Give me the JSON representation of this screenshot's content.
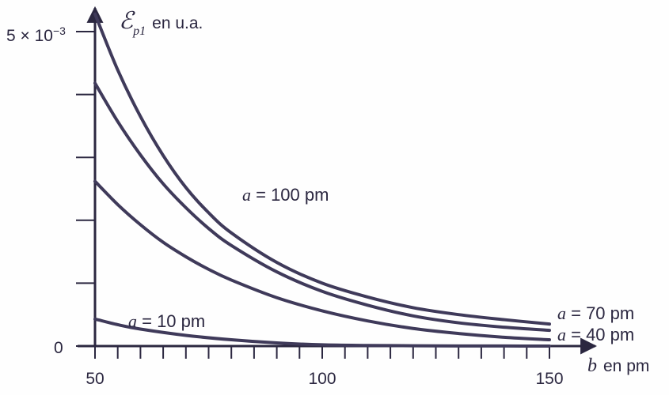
{
  "chart_data": {
    "type": "line",
    "ylabel_symbol": "ℰ",
    "ylabel_subscript": "p1",
    "ylabel_units": "en u.a.",
    "xlabel_symbol": "b",
    "xlabel_units": "en pm",
    "x_tick_labels": [
      "50",
      "100",
      "150"
    ],
    "y_tick_labels": {
      "top_mantissa": "5 × 10",
      "top_exponent": "−3",
      "zero": "0"
    },
    "xlim": [
      50,
      150
    ],
    "ylim": [
      0,
      0.005
    ],
    "x_ticks": [
      50,
      55,
      60,
      65,
      70,
      75,
      80,
      85,
      90,
      95,
      100,
      105,
      110,
      115,
      120,
      125,
      130,
      135,
      140,
      145,
      150
    ],
    "y_ticks": [
      0,
      0.001,
      0.002,
      0.003,
      0.004,
      0.005
    ],
    "series": [
      {
        "label_var": "a",
        "label_eq": " = 100",
        "label_unit": " pm",
        "x": [
          50,
          55,
          60,
          65,
          70,
          75,
          80,
          90,
          100,
          110,
          120,
          130,
          140,
          150
        ],
        "y": [
          0.00528,
          0.00439,
          0.00365,
          0.00303,
          0.00252,
          0.00212,
          0.0018,
          0.00133,
          0.001,
          0.00078,
          0.00061,
          0.0005,
          0.00042,
          0.00035
        ]
      },
      {
        "label_var": "a",
        "label_eq": " = 70",
        "label_unit": " pm",
        "x": [
          50,
          55,
          60,
          65,
          70,
          75,
          80,
          90,
          100,
          110,
          120,
          130,
          140,
          150
        ],
        "y": [
          0.00418,
          0.00357,
          0.00304,
          0.00258,
          0.0022,
          0.00187,
          0.0016,
          0.00118,
          0.00087,
          0.00065,
          0.00048,
          0.00037,
          0.0003,
          0.00025
        ]
      },
      {
        "label_var": "a",
        "label_eq": " = 40",
        "label_unit": " pm",
        "x": [
          50,
          55,
          60,
          65,
          70,
          75,
          80,
          90,
          100,
          110,
          120,
          130,
          140,
          150
        ],
        "y": [
          0.00262,
          0.00225,
          0.00193,
          0.00165,
          0.00142,
          0.00122,
          0.00105,
          0.00077,
          0.00056,
          0.0004,
          0.00028,
          0.0002,
          0.00014,
          0.0001
        ]
      },
      {
        "label_var": "a",
        "label_eq": " = 10",
        "label_unit": " pm",
        "x": [
          50,
          55,
          60,
          70,
          80,
          90,
          100,
          110,
          120,
          130,
          140,
          150
        ],
        "y": [
          0.00043,
          0.00034,
          0.00027,
          0.00017,
          0.0001,
          5e-05,
          2e-05,
          1e-05,
          5e-06,
          2e-06,
          1e-06,
          0
        ]
      }
    ],
    "annotations": [
      "a = 100 pm",
      "a = 70 pm",
      "a = 40 pm",
      "a = 10 pm"
    ],
    "grid": false,
    "legend": "none"
  }
}
